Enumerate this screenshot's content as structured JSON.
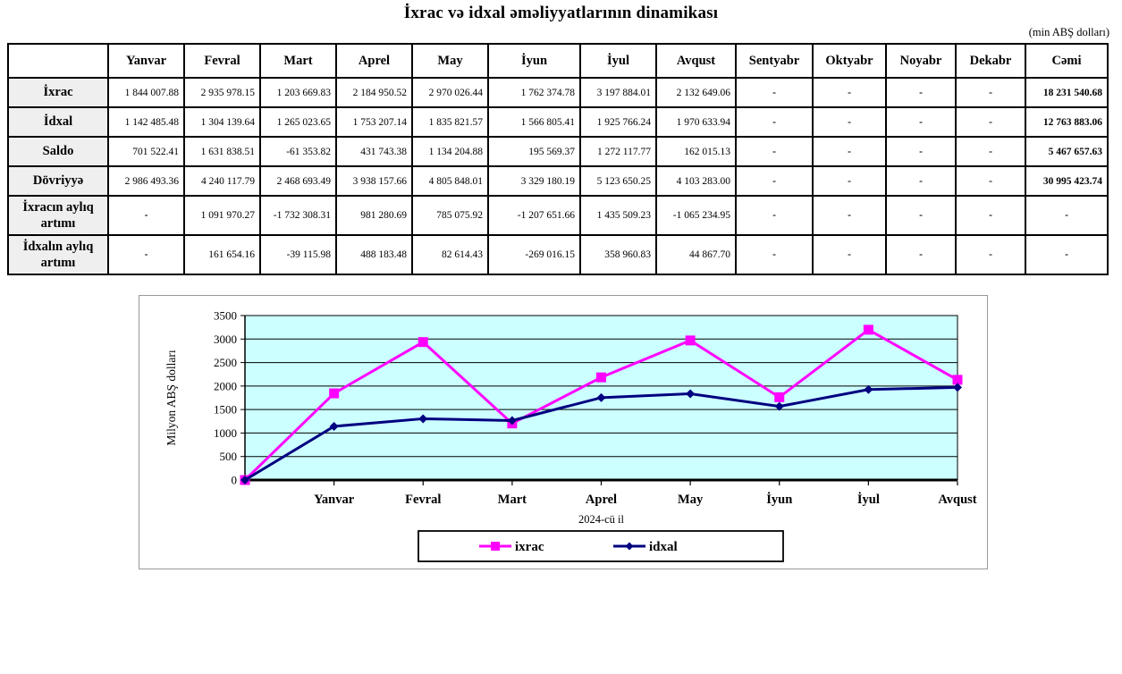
{
  "page": {
    "title": "İxrac və idxal əməliyyatlarının dinamikası",
    "unit_note": "(min ABŞ dolları)"
  },
  "table": {
    "columns": [
      "",
      "Yanvar",
      "Fevral",
      "Mart",
      "Aprel",
      "May",
      "İyun",
      "İyul",
      "Avqust",
      "Sentyabr",
      "Oktyabr",
      "Noyabr",
      "Dekabr",
      "Cəmi"
    ],
    "rows": [
      {
        "label": "İxrac",
        "values": [
          "1 844 007.88",
          "2 935 978.15",
          "1 203 669.83",
          "2 184 950.52",
          "2 970 026.44",
          "1 762 374.78",
          "3 197 884.01",
          "2 132 649.06",
          "-",
          "-",
          "-",
          "-",
          "18 231 540.68"
        ]
      },
      {
        "label": "İdxal",
        "values": [
          "1 142 485.48",
          "1 304 139.64",
          "1 265 023.65",
          "1 753 207.14",
          "1 835 821.57",
          "1 566 805.41",
          "1 925 766.24",
          "1 970 633.94",
          "-",
          "-",
          "-",
          "-",
          "12 763 883.06"
        ]
      },
      {
        "label": "Saldo",
        "values": [
          "701 522.41",
          "1 631 838.51",
          "-61 353.82",
          "431 743.38",
          "1 134 204.88",
          "195 569.37",
          "1 272 117.77",
          "162 015.13",
          "-",
          "-",
          "-",
          "-",
          "5 467 657.63"
        ]
      },
      {
        "label": "Dövriyyə",
        "values": [
          "2 986 493.36",
          "4 240 117.79",
          "2 468 693.49",
          "3 938 157.66",
          "4 805 848.01",
          "3 329 180.19",
          "5 123 650.25",
          "4 103 283.00",
          "-",
          "-",
          "-",
          "-",
          "30 995 423.74"
        ]
      },
      {
        "label": "İxracın aylıq artımı",
        "values": [
          "-",
          "1 091 970.27",
          "-1 732 308.31",
          "981 280.69",
          "785 075.92",
          "-1 207 651.66",
          "1 435 509.23",
          "-1 065 234.95",
          "-",
          "-",
          "-",
          "-",
          "-"
        ]
      },
      {
        "label": "İdxalın aylıq artımı",
        "values": [
          "-",
          "161 654.16",
          "-39 115.98",
          "488 183.48",
          "82 614.43",
          "-269 016.15",
          "358 960.83",
          "44 867.70",
          "-",
          "-",
          "-",
          "-",
          "-"
        ]
      }
    ]
  },
  "chart_data": {
    "type": "line",
    "title": "",
    "x_categories": [
      "",
      "Yanvar",
      "Fevral",
      "Mart",
      "Aprel",
      "May",
      "İyun",
      "İyul",
      "Avqust"
    ],
    "xlabel": "2024-cü il",
    "ylabel": "Milyon ABŞ dolları",
    "ylim": [
      0,
      3500
    ],
    "ytick_step": 500,
    "grid": true,
    "legend_position": "bottom",
    "plot_bg_color": "#CCFFFF",
    "series": [
      {
        "name": "ixrac",
        "color": "#FF00FF",
        "marker": "square",
        "values": [
          0,
          1844.01,
          2935.98,
          1203.67,
          2184.95,
          2970.03,
          1762.37,
          3197.88,
          2132.65
        ]
      },
      {
        "name": "idxal",
        "color": "#000080",
        "marker": "diamond",
        "values": [
          0,
          1142.49,
          1304.14,
          1265.02,
          1753.21,
          1835.82,
          1566.81,
          1925.77,
          1970.63
        ]
      }
    ]
  }
}
